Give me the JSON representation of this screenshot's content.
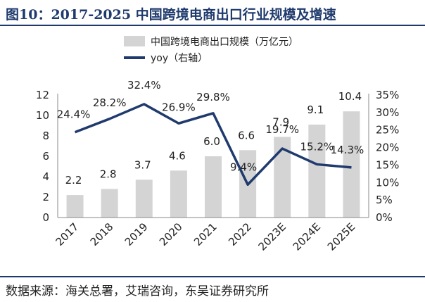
{
  "figure": {
    "title": "图10：2017-2025 中国跨境电商出口行业规模及增速",
    "source": "数据来源：海关总署，艾瑞咨询，东吴证券研究所"
  },
  "colors": {
    "bar": "#d4d4d4",
    "line": "#1f3a6d",
    "rule": "#1f3a6d"
  },
  "chart_data": {
    "type": "bar",
    "categories": [
      "2017",
      "2018",
      "2019",
      "2020",
      "2021",
      "2022",
      "2023E",
      "2024E",
      "2025E"
    ],
    "series": [
      {
        "name": "中国跨境电商出口规模（万亿元）",
        "type": "bar",
        "axis": "left",
        "values": [
          2.2,
          2.8,
          3.7,
          4.6,
          6.0,
          6.6,
          7.9,
          9.1,
          10.4
        ],
        "labels": [
          "2.2",
          "2.8",
          "3.7",
          "4.6",
          "6.0",
          "6.6",
          "7.9",
          "9.1",
          "10.4"
        ]
      },
      {
        "name": "yoy（右轴）",
        "type": "line",
        "axis": "right",
        "values": [
          24.4,
          28.2,
          32.4,
          26.9,
          29.8,
          9.4,
          19.7,
          15.2,
          14.3
        ],
        "labels": [
          "24.4%",
          "28.2%",
          "32.4%",
          "26.9%",
          "29.8%",
          "9.4%",
          "19.7%",
          "15.2%",
          "14.3%"
        ]
      }
    ],
    "ylim": [
      0,
      12
    ],
    "yticks": [
      "0",
      "2",
      "4",
      "6",
      "8",
      "10",
      "12"
    ],
    "y2lim": [
      0,
      35
    ],
    "y2ticks": [
      "0%",
      "5%",
      "10%",
      "15%",
      "20%",
      "25%",
      "30%",
      "35%"
    ],
    "legend_position": "top",
    "grid": false
  }
}
